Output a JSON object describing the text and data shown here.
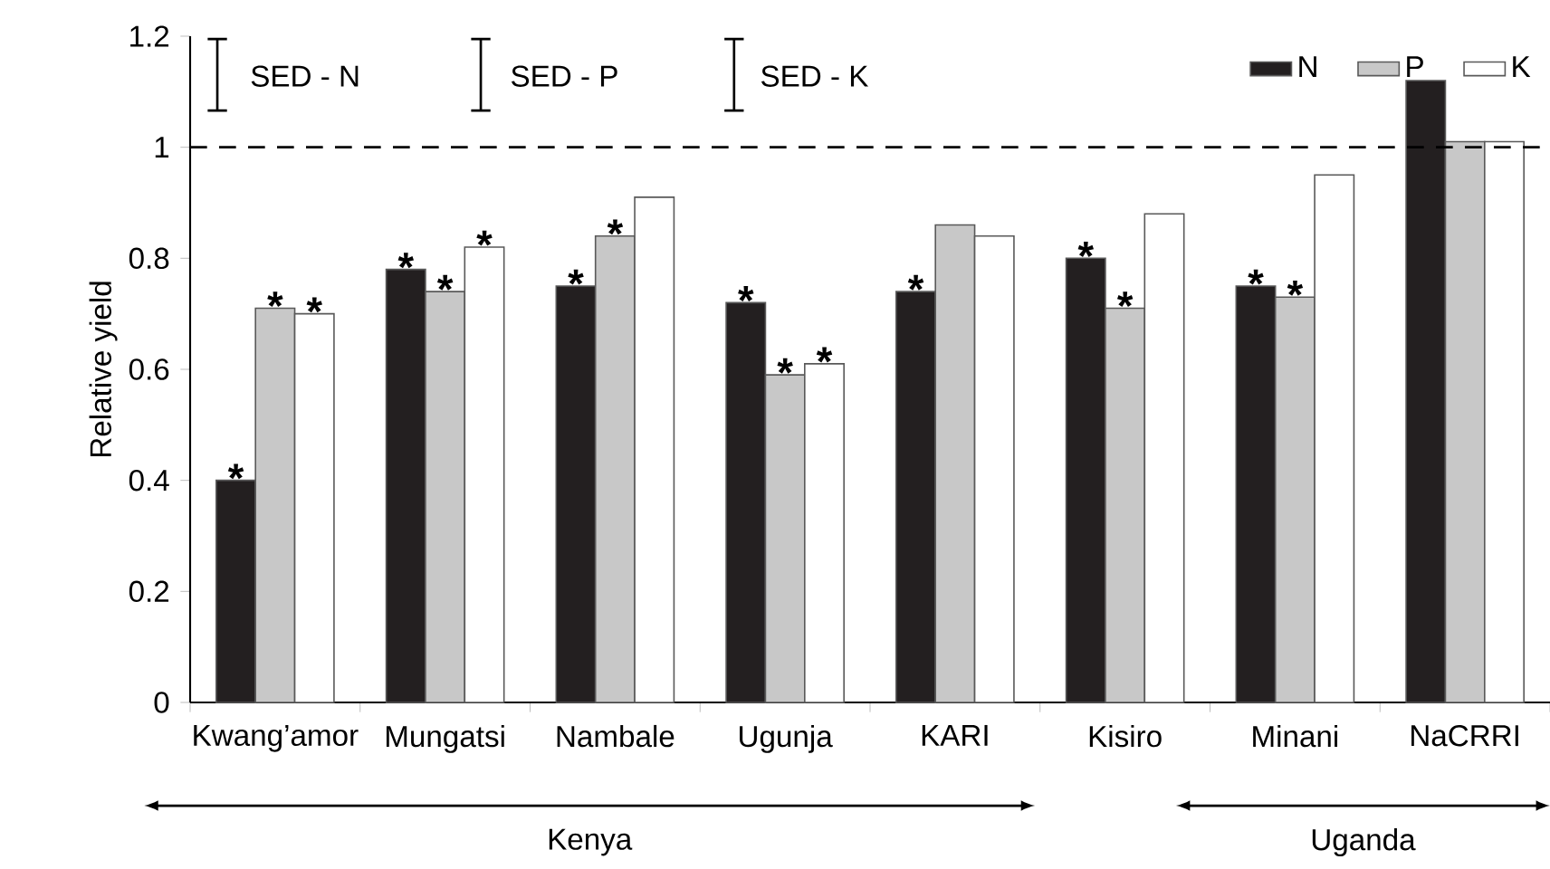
{
  "chart_data": {
    "type": "bar",
    "ylabel": "Relative yield",
    "categories": [
      "Kwang’amor",
      "Mungatsi",
      "Nambale",
      "Ugunja",
      "KARI",
      "Kisiro",
      "Minani",
      "NaCRRI"
    ],
    "series": [
      {
        "name": "N",
        "color": "#231f20",
        "values": [
          0.4,
          0.78,
          0.75,
          0.72,
          0.74,
          0.8,
          0.75,
          1.12
        ],
        "value_labels": [
          "*",
          "*",
          "*",
          "*",
          "*",
          "*",
          "*",
          null
        ]
      },
      {
        "name": "P",
        "color": "#c8c8c8",
        "values": [
          0.71,
          0.74,
          0.84,
          0.59,
          0.86,
          0.71,
          0.73,
          1.01
        ],
        "value_labels": [
          "*",
          "*",
          "*",
          "*",
          null,
          "*",
          "*",
          null
        ]
      },
      {
        "name": "K",
        "color": "#ffffff",
        "values": [
          0.7,
          0.82,
          0.91,
          0.61,
          0.84,
          0.88,
          0.95,
          1.01
        ],
        "value_labels": [
          "*",
          "*",
          null,
          "*",
          null,
          null,
          null,
          null
        ]
      }
    ],
    "ylim": [
      0,
      1.2
    ],
    "yticks": [
      0,
      0.2,
      0.4,
      0.6,
      0.8,
      1,
      1.2
    ],
    "ref_lines": [
      {
        "axis": "y",
        "value": 1,
        "line_style": "dashed"
      }
    ],
    "legend": "top right",
    "annotations": [
      "SED - N",
      "SED - P",
      "SED - K",
      "Kenya",
      "Uganda"
    ]
  }
}
